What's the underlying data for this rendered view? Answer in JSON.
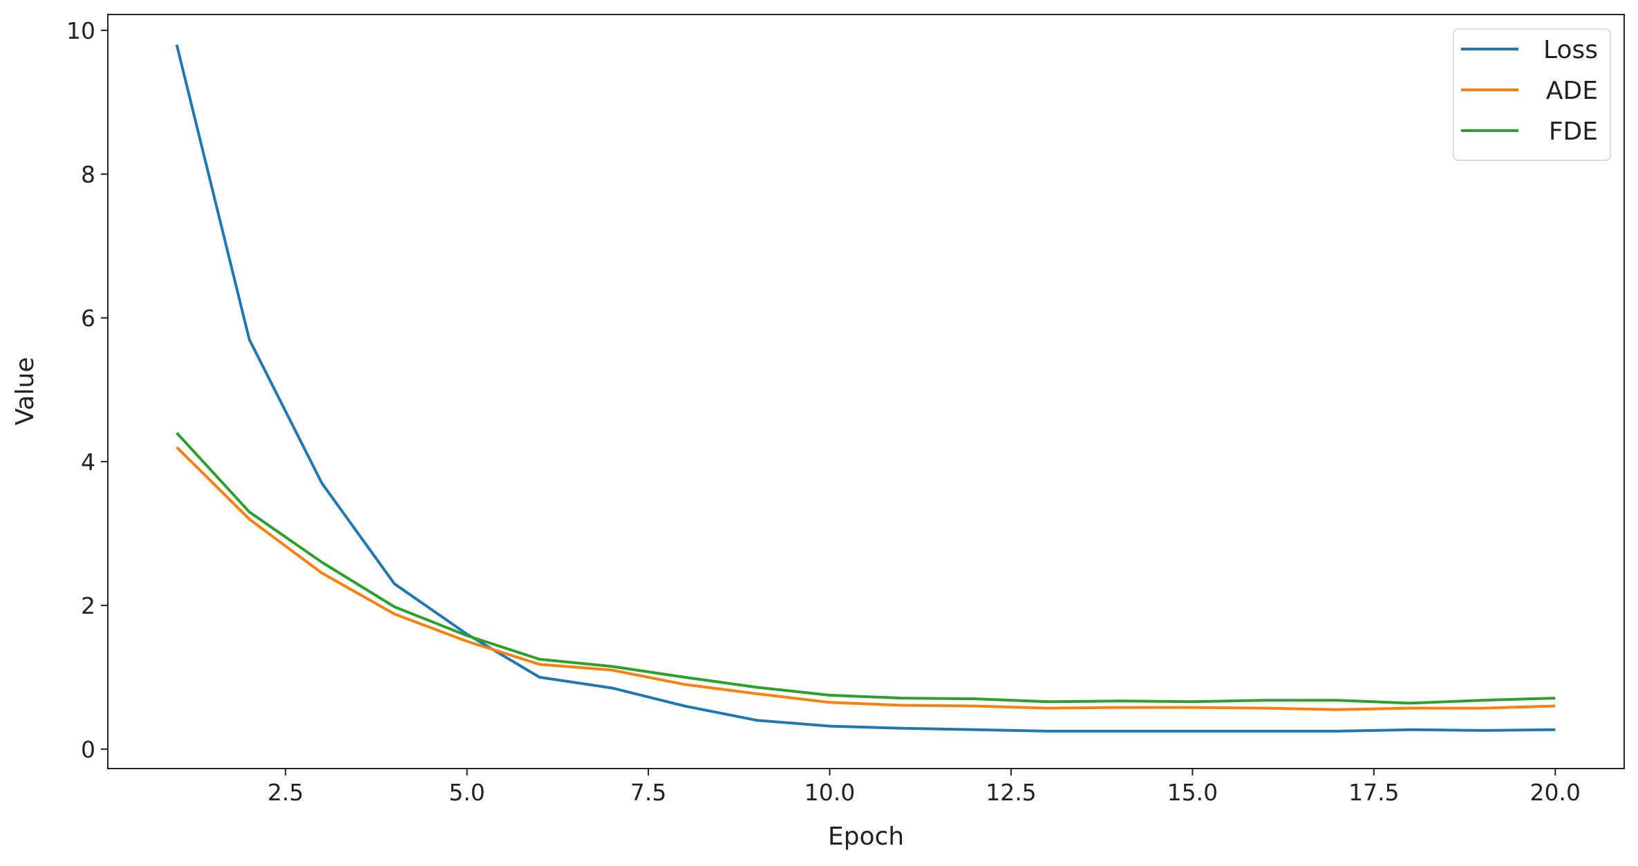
{
  "chart_data": {
    "type": "line",
    "title": "",
    "xlabel": "Epoch",
    "ylabel": "Value",
    "xlim": [
      0.05,
      20.95
    ],
    "ylim": [
      -0.27,
      10.22
    ],
    "xticks": [
      "2.5",
      "5.0",
      "7.5",
      "10.0",
      "12.5",
      "15.0",
      "17.5",
      "20.0"
    ],
    "yticks": [
      "0",
      "2",
      "4",
      "6",
      "8",
      "10"
    ],
    "grid": false,
    "legend_position": "top-right",
    "x": [
      1,
      2,
      3,
      4,
      5,
      6,
      7,
      8,
      9,
      10,
      11,
      12,
      13,
      14,
      15,
      16,
      17,
      18,
      19,
      20
    ],
    "series": [
      {
        "name": "Loss",
        "color": "#1f77b4",
        "values": [
          9.8,
          5.7,
          3.7,
          2.3,
          1.6,
          1.0,
          0.85,
          0.6,
          0.4,
          0.32,
          0.29,
          0.27,
          0.25,
          0.25,
          0.25,
          0.25,
          0.25,
          0.27,
          0.26,
          0.27
        ]
      },
      {
        "name": "ADE",
        "color": "#ff7f0e",
        "values": [
          4.2,
          3.2,
          2.45,
          1.88,
          1.5,
          1.18,
          1.1,
          0.9,
          0.77,
          0.65,
          0.61,
          0.6,
          0.57,
          0.58,
          0.58,
          0.57,
          0.55,
          0.57,
          0.57,
          0.6
        ]
      },
      {
        "name": "FDE",
        "color": "#2ca02c",
        "values": [
          4.4,
          3.3,
          2.6,
          1.98,
          1.58,
          1.25,
          1.15,
          1.0,
          0.86,
          0.75,
          0.71,
          0.7,
          0.66,
          0.67,
          0.66,
          0.68,
          0.68,
          0.64,
          0.68,
          0.71
        ]
      }
    ]
  }
}
